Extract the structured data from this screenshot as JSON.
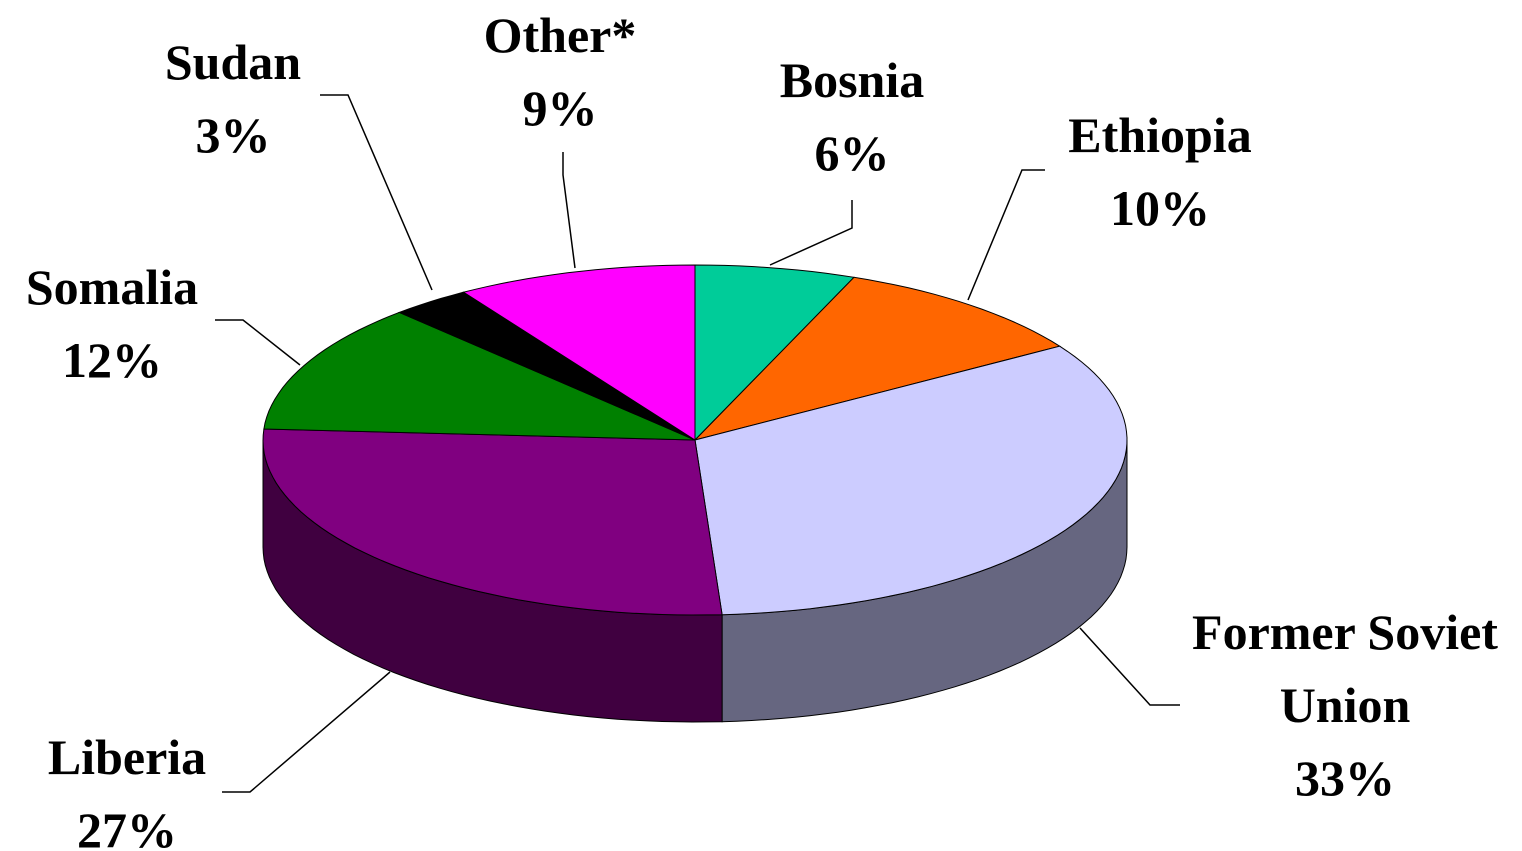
{
  "chart_data": {
    "type": "pie3d",
    "categories": [
      "Bosnia",
      "Ethiopia",
      "Former Soviet Union",
      "Liberia",
      "Somalia",
      "Sudan",
      "Other*"
    ],
    "values": [
      6,
      10,
      33,
      27,
      12,
      3,
      9
    ],
    "value_labels": [
      "6%",
      "10%",
      "33%",
      "27%",
      "12%",
      "3%",
      "9%"
    ],
    "colors": [
      "#00cc99",
      "#ff6600",
      "#ccccff",
      "#800080",
      "#008000",
      "#000000",
      "#ff00ff"
    ]
  }
}
